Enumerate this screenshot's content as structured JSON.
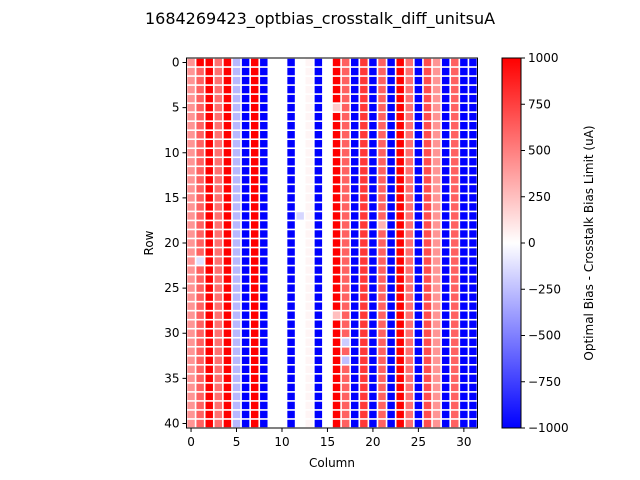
{
  "chart_data": {
    "type": "heatmap",
    "title": "1684269423_optbias_crosstalk_diff_unitsuA",
    "xlabel": "Column",
    "ylabel": "Row",
    "colorbar_label": "Optimal Bias - Crosstalk Bias Limit (uA)",
    "colormap": "bwr",
    "vmin": -1000,
    "vmax": 1000,
    "xlim": [
      -0.5,
      31.5
    ],
    "ylim": [
      40.5,
      -0.5
    ],
    "xticks": [
      0,
      5,
      10,
      15,
      20,
      25,
      30
    ],
    "yticks": [
      0,
      5,
      10,
      15,
      20,
      25,
      30,
      35,
      40
    ],
    "colorbar_ticks": [
      1000,
      750,
      500,
      250,
      0,
      -250,
      -500,
      -750,
      -1000
    ],
    "colorbar_tick_labels": [
      "1000",
      "750",
      "500",
      "250",
      "0",
      "−250",
      "−500",
      "−750",
      "−1000"
    ],
    "rows": 41,
    "columns": 32,
    "column_typical_values": [
      420,
      620,
      1000,
      560,
      1000,
      -280,
      -1000,
      1000,
      -1000,
      null,
      null,
      -1000,
      null,
      40,
      -1000,
      null,
      1000,
      620,
      -1000,
      780,
      -1000,
      620,
      -1000,
      1000,
      560,
      -1000,
      700,
      420,
      -1000,
      620,
      -1000,
      -1000
    ],
    "cell_overrides": [
      {
        "row": 0,
        "col": 1,
        "value": 1000
      },
      {
        "row": 17,
        "col": 12,
        "value": -160
      },
      {
        "row": 22,
        "col": 1,
        "value": -120
      },
      {
        "row": 5,
        "col": 16,
        "value": 200
      },
      {
        "row": 28,
        "col": 16,
        "value": 250
      },
      {
        "row": 31,
        "col": 17,
        "value": -200
      },
      {
        "row": 33,
        "col": 17,
        "value": -250
      },
      {
        "row": 18,
        "col": 21,
        "value": 300
      }
    ]
  }
}
